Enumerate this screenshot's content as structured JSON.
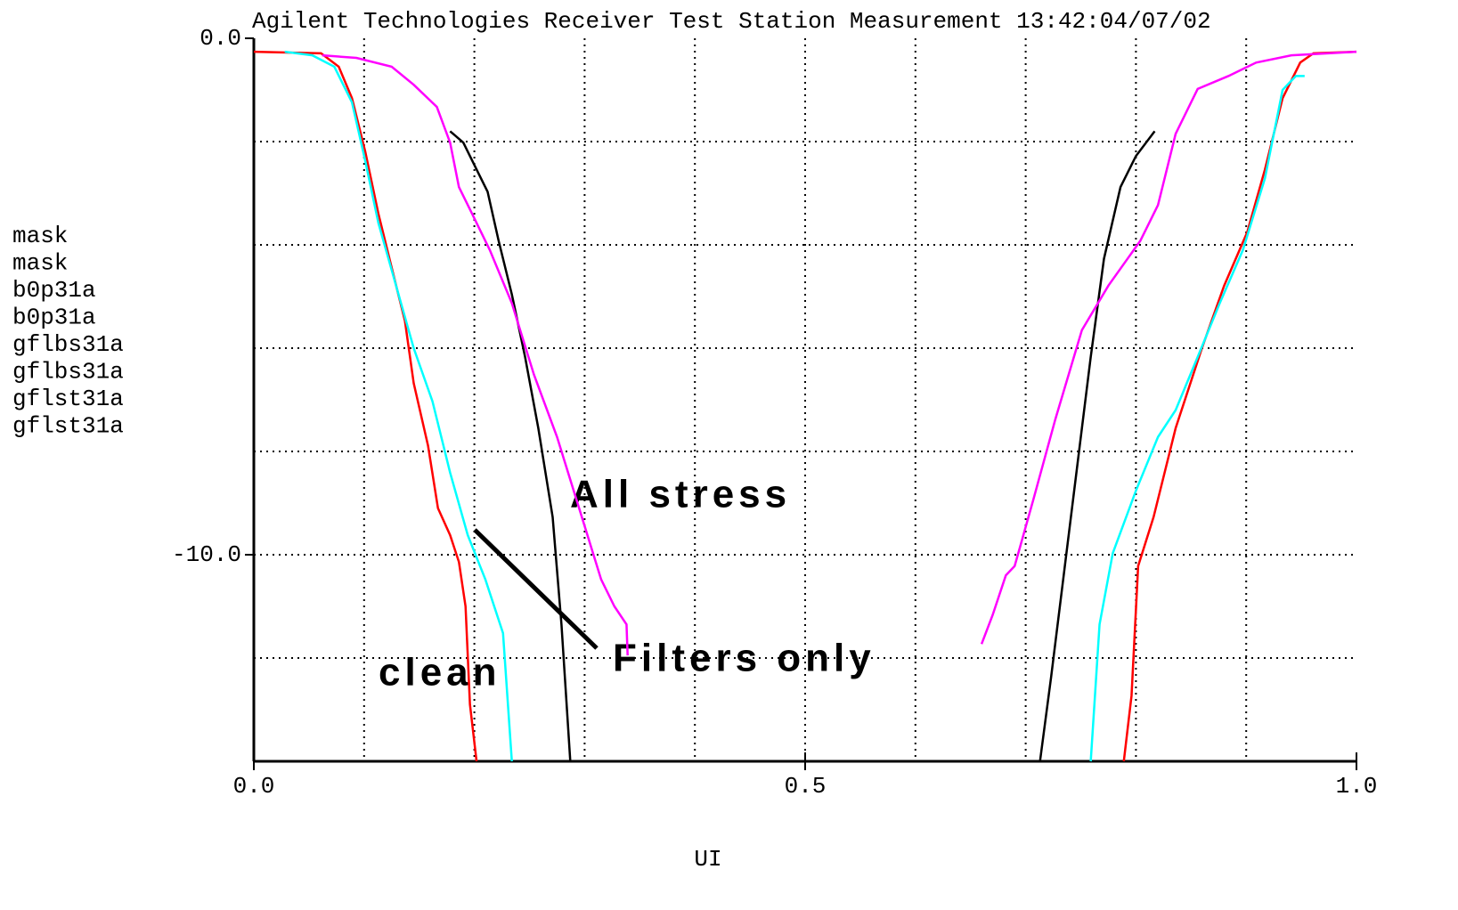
{
  "chart_data": {
    "type": "line",
    "title": "Agilent Technologies Receiver Test Station Measurement 13:42:04/07/02",
    "x_label": "UI",
    "xlim": [
      0,
      1
    ],
    "ylim": [
      -14,
      0
    ],
    "xticks": [
      {
        "value": 0,
        "label": "0.0"
      },
      {
        "value": 0.5,
        "label": "0.5"
      },
      {
        "value": 1,
        "label": "1.0"
      }
    ],
    "yticks": [
      {
        "value": 0,
        "label": "0.0"
      },
      {
        "value": -10,
        "label": "-10.0"
      }
    ],
    "xgrid": [
      0.1,
      0.2,
      0.3,
      0.4,
      0.5,
      0.6,
      0.7,
      0.8,
      0.9
    ],
    "ygrid": [
      -2,
      -4,
      -6,
      -8,
      -10,
      -12
    ],
    "annotations": [
      "All stress",
      "Filters only",
      "clean"
    ],
    "series": [
      {
        "name": "mask",
        "color": "#000000",
        "x": [
          0.178,
          0.19,
          0.202,
          0.212,
          0.222,
          0.234,
          0.246,
          0.258,
          0.271,
          0.279,
          0.287
        ],
        "values": [
          -1.8,
          -2.02,
          -2.54,
          -2.97,
          -3.92,
          -4.96,
          -6.17,
          -7.55,
          -9.27,
          -11.35,
          -14
        ]
      },
      {
        "name": "mask",
        "color": "#000000",
        "x": [
          0.713,
          0.723,
          0.735,
          0.747,
          0.759,
          0.771,
          0.786,
          0.8,
          0.817
        ],
        "values": [
          -14,
          -12.38,
          -10.31,
          -8.24,
          -6.17,
          -4.27,
          -2.88,
          -2.28,
          -1.8
        ]
      },
      {
        "name": "b0p31a",
        "color": "#ff0000",
        "x": [
          0,
          0.061,
          0.077,
          0.089,
          0.101,
          0.113,
          0.125,
          0.137,
          0.145,
          0.158,
          0.167,
          0.178,
          0.186,
          0.192,
          0.196,
          0.202
        ],
        "values": [
          -0.26,
          -0.29,
          -0.55,
          -1.16,
          -2.19,
          -3.4,
          -4.44,
          -5.47,
          -6.68,
          -7.89,
          -9.1,
          -9.62,
          -10.14,
          -11.0,
          -12.9,
          -14
        ]
      },
      {
        "name": "b0p31a",
        "color": "#ff0000",
        "x": [
          0.789,
          0.796,
          0.802,
          0.816,
          0.836,
          0.86,
          0.88,
          0.901,
          0.917,
          0.933,
          0.949,
          0.961,
          1.0
        ],
        "values": [
          -14,
          -12.73,
          -10.22,
          -9.27,
          -7.55,
          -5.99,
          -4.79,
          -3.75,
          -2.54,
          -1.16,
          -0.47,
          -0.29,
          -0.26
        ]
      },
      {
        "name": "gflbs31a",
        "color": "#00ffff",
        "x": [
          0.028,
          0.053,
          0.073,
          0.089,
          0.101,
          0.113,
          0.129,
          0.145,
          0.162,
          0.178,
          0.194,
          0.21,
          0.226,
          0.234
        ],
        "values": [
          -0.26,
          -0.33,
          -0.55,
          -1.24,
          -2.37,
          -3.58,
          -4.79,
          -6.0,
          -7.03,
          -8.41,
          -9.62,
          -10.48,
          -11.52,
          -14
        ]
      },
      {
        "name": "gflbs31a",
        "color": "#00ffff",
        "x": [
          0.759,
          0.767,
          0.779,
          0.8,
          0.82,
          0.836,
          0.856,
          0.876,
          0.897,
          0.917,
          0.933,
          0.945,
          0.953
        ],
        "values": [
          -14,
          -11.35,
          -9.97,
          -8.76,
          -7.72,
          -7.2,
          -6.17,
          -5.13,
          -4.1,
          -2.71,
          -1.0,
          -0.73,
          -0.73
        ]
      },
      {
        "name": "gflst31a",
        "color": "#ff00ff",
        "x": [
          0.062,
          0.093,
          0.125,
          0.145,
          0.166,
          0.178,
          0.186,
          0.198,
          0.214,
          0.234,
          0.254,
          0.275,
          0.295,
          0.315,
          0.327,
          0.338,
          0.339
        ],
        "values": [
          -0.33,
          -0.38,
          -0.55,
          -0.9,
          -1.33,
          -2.02,
          -2.88,
          -3.4,
          -4.1,
          -5.13,
          -6.51,
          -7.72,
          -9.1,
          -10.48,
          -11.0,
          -11.35,
          -11.95
        ]
      },
      {
        "name": "gflst31a",
        "color": "#ff00ff",
        "x": [
          0.66,
          0.67,
          0.682,
          0.69,
          0.707,
          0.727,
          0.751,
          0.775,
          0.804,
          0.82,
          0.836,
          0.856,
          0.884,
          0.909,
          0.941,
          1.0
        ],
        "values": [
          -11.73,
          -11.17,
          -10.4,
          -10.22,
          -8.93,
          -7.37,
          -5.65,
          -4.79,
          -3.92,
          -3.23,
          -1.85,
          -0.98,
          -0.73,
          -0.47,
          -0.33,
          -0.26
        ]
      }
    ]
  }
}
